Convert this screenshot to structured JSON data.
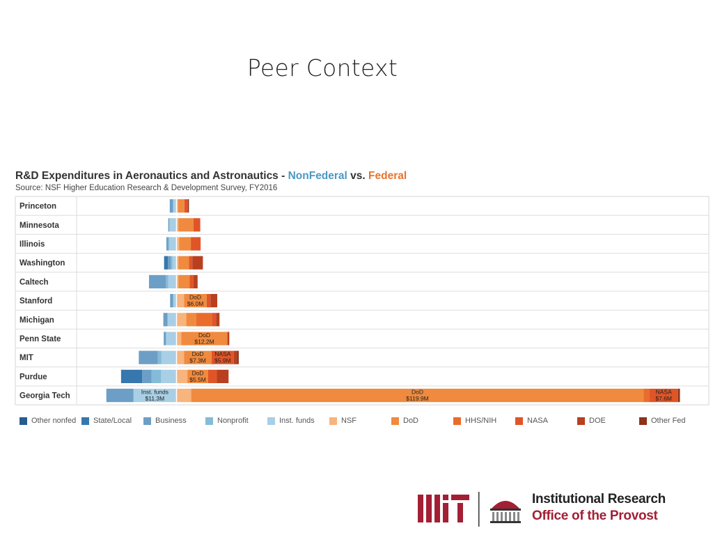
{
  "slide": {
    "title": "Peer Context"
  },
  "chart_data": {
    "type": "bar",
    "title_parts": [
      "R&D Expenditures in Aeronautics and Astronautics - ",
      "NonFederal",
      " vs. ",
      "Federal"
    ],
    "subtitle": "Source: NSF Higher Education Research & Development Survey, FY2016",
    "units": "$M",
    "nonfederal_categories": [
      "Other nonfed",
      "State/Local",
      "Business",
      "Nonprofit",
      "Inst. funds"
    ],
    "federal_categories": [
      "NSF",
      "DoD",
      "HHS/NIH",
      "NASA",
      "DOE",
      "Other Fed"
    ],
    "category_colors": {
      "Other nonfed": "#2a5d8f",
      "State/Local": "#3677ad",
      "Business": "#6d9fc6",
      "Nonprofit": "#84bbd9",
      "Inst. funds": "#a8cfe5",
      "NSF": "#f7b47c",
      "DoD": "#f08a3e",
      "HHS/NIH": "#ea6c2c",
      "NASA": "#e05527",
      "DOE": "#b8401f",
      "Other Fed": "#8c3318"
    },
    "institutions": [
      {
        "name": "Princeton",
        "nonfederal": {
          "Other nonfed": 0,
          "State/Local": 0,
          "Business": 0.8,
          "Nonprofit": 0.2,
          "Inst. funds": 0.7
        },
        "federal": {
          "NSF": 0.3,
          "DoD": 1.7,
          "HHS/NIH": 0,
          "NASA": 0.9,
          "DOE": 0,
          "Other Fed": 0.3
        }
      },
      {
        "name": "Minnesota",
        "nonfederal": {
          "Other nonfed": 0,
          "State/Local": 0,
          "Business": 0.3,
          "Nonprofit": 0,
          "Inst. funds": 1.8
        },
        "federal": {
          "NSF": 0.4,
          "DoD": 4.0,
          "HHS/NIH": 0,
          "NASA": 1.8,
          "DOE": 0,
          "Other Fed": 0
        }
      },
      {
        "name": "Illinois",
        "nonfederal": {
          "Other nonfed": 0,
          "State/Local": 0,
          "Business": 0.5,
          "Nonprofit": 0.3,
          "Inst. funds": 1.8
        },
        "federal": {
          "NSF": 0.6,
          "DoD": 3.1,
          "HHS/NIH": 0,
          "NASA": 2.6,
          "DOE": 0,
          "Other Fed": 0
        }
      },
      {
        "name": "Washington",
        "nonfederal": {
          "Other nonfed": 0,
          "State/Local": 1.0,
          "Business": 0.8,
          "Nonprofit": 0.4,
          "Inst. funds": 1.0
        },
        "federal": {
          "NSF": 0.4,
          "DoD": 2.8,
          "HHS/NIH": 0,
          "NASA": 0.9,
          "DOE": 2.8,
          "Other Fed": 0
        }
      },
      {
        "name": "Caltech",
        "nonfederal": {
          "Other nonfed": 0,
          "State/Local": 0,
          "Business": 4.5,
          "Nonprofit": 0.6,
          "Inst. funds": 2.1
        },
        "federal": {
          "NSF": 0.4,
          "DoD": 3.0,
          "HHS/NIH": 0,
          "NASA": 1.0,
          "DOE": 1.1,
          "Other Fed": 0
        }
      },
      {
        "name": "Stanford",
        "nonfederal": {
          "Other nonfed": 0,
          "State/Local": 0,
          "Business": 0.8,
          "Nonprofit": 0,
          "Inst. funds": 0.8
        },
        "federal": {
          "NSF": 1.9,
          "DoD": 6.0,
          "HHS/NIH": 0,
          "NASA": 1.0,
          "DOE": 1.8,
          "Other Fed": 0
        }
      },
      {
        "name": "Michigan",
        "nonfederal": {
          "Other nonfed": 0,
          "State/Local": 0,
          "Business": 1.1,
          "Nonprofit": 0,
          "Inst. funds": 2.3
        },
        "federal": {
          "NSF": 2.5,
          "DoD": 2.6,
          "HHS/NIH": 4.2,
          "NASA": 1.1,
          "DOE": 0.9,
          "Other Fed": 0
        }
      },
      {
        "name": "Penn State",
        "nonfederal": {
          "Other nonfed": 0,
          "State/Local": 0,
          "Business": 0.6,
          "Nonprofit": 0,
          "Inst. funds": 2.7
        },
        "federal": {
          "NSF": 1.2,
          "DoD": 12.2,
          "HHS/NIH": 0,
          "NASA": 0,
          "DOE": 0.5,
          "Other Fed": 0
        }
      },
      {
        "name": "MIT",
        "nonfederal": {
          "Other nonfed": 0,
          "State/Local": 0,
          "Business": 5.0,
          "Nonprofit": 1.0,
          "Inst. funds": 3.9
        },
        "federal": {
          "NSF": 1.9,
          "DoD": 7.3,
          "HHS/NIH": 0,
          "NASA": 5.9,
          "DOE": 0.8,
          "Other Fed": 0.5
        }
      },
      {
        "name": "Purdue",
        "nonfederal": {
          "Other nonfed": 0,
          "State/Local": 5.6,
          "Business": 2.5,
          "Nonprofit": 2.5,
          "Inst. funds": 4.0
        },
        "federal": {
          "NSF": 2.8,
          "DoD": 5.5,
          "HHS/NIH": 0,
          "NASA": 2.3,
          "DOE": 3.1,
          "Other Fed": 0
        }
      },
      {
        "name": "Georgia Tech",
        "nonfederal": {
          "Other nonfed": 0,
          "State/Local": 0,
          "Business": 7.2,
          "Nonprofit": 0,
          "Inst. funds": 11.3
        },
        "federal": {
          "NSF": 3.8,
          "DoD": 119.9,
          "HHS/NIH": 1.5,
          "NASA": 7.6,
          "DOE": 0,
          "Other Fed": 0.5
        }
      }
    ],
    "data_labels": [
      {
        "institution": "Stanford",
        "category": "DoD",
        "label": "DoD",
        "value": "$6.0M"
      },
      {
        "institution": "Penn State",
        "category": "DoD",
        "label": "DoD",
        "value": "$12.2M"
      },
      {
        "institution": "MIT",
        "category": "DoD",
        "label": "DoD",
        "value": "$7.3M"
      },
      {
        "institution": "MIT",
        "category": "NASA",
        "label": "NASA",
        "value": "$5.9M"
      },
      {
        "institution": "Purdue",
        "category": "DoD",
        "label": "DoD",
        "value": "$5.5M"
      },
      {
        "institution": "Georgia Tech",
        "category": "Inst. funds",
        "label": "Inst. funds",
        "value": "$11.3M"
      },
      {
        "institution": "Georgia Tech",
        "category": "DoD",
        "label": "DoD",
        "value": "$119.9M"
      },
      {
        "institution": "Georgia Tech",
        "category": "NASA",
        "label": "NASA",
        "value": "$7.6M"
      }
    ],
    "legend_placement": "bottom",
    "grid": false
  },
  "footer": {
    "logo_line1": "Institutional Research",
    "logo_line2": "Office of the Provost"
  }
}
